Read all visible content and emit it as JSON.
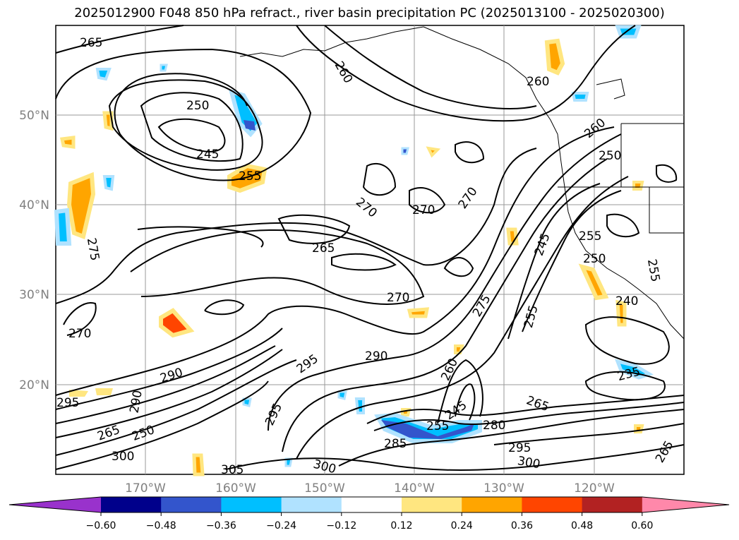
{
  "title": "2025012900 F048 850 hPa refract., river basin precipitation PC (2025013100 - 2025020300)",
  "map": {
    "lat_labels": [
      "50°N",
      "40°N",
      "30°N",
      "20°N"
    ],
    "lon_labels": [
      "170°W",
      "160°W",
      "150°W",
      "140°W",
      "130°W",
      "120°W"
    ],
    "contour_labels": [
      "265",
      "260",
      "250",
      "245",
      "255",
      "260",
      "260",
      "250",
      "270",
      "270",
      "270",
      "265",
      "275",
      "245",
      "255",
      "250",
      "255",
      "270",
      "275",
      "255",
      "240",
      "270",
      "290",
      "290",
      "295",
      "295",
      "295",
      "290",
      "260",
      "245",
      "265",
      "235",
      "265",
      "280",
      "285",
      "300",
      "305",
      "300",
      "295",
      "300",
      "265",
      "255",
      "250"
    ]
  },
  "colorbar": {
    "ticks": [
      "−0.60",
      "−0.48",
      "−0.36",
      "−0.24",
      "−0.12",
      "0.12",
      "0.24",
      "0.36",
      "0.48",
      "0.60"
    ],
    "colors": [
      "#9932cc",
      "#00008b",
      "#3355cc",
      "#00bfff",
      "#b0e2ff",
      "#ffffff",
      "#ffe680",
      "#ffa500",
      "#ff4500",
      "#b22222",
      "#ff88aa"
    ]
  }
}
